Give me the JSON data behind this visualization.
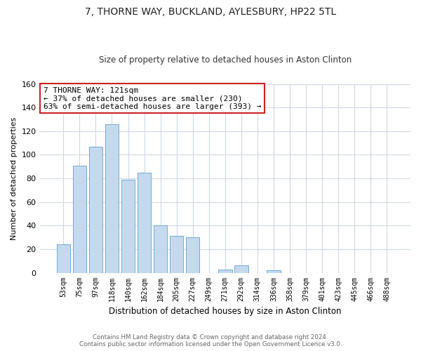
{
  "title": "7, THORNE WAY, BUCKLAND, AYLESBURY, HP22 5TL",
  "subtitle": "Size of property relative to detached houses in Aston Clinton",
  "xlabel": "Distribution of detached houses by size in Aston Clinton",
  "ylabel": "Number of detached properties",
  "bar_color": "#c5d9ee",
  "bar_edge_color": "#6baed6",
  "categories": [
    "53sqm",
    "75sqm",
    "97sqm",
    "118sqm",
    "140sqm",
    "162sqm",
    "184sqm",
    "205sqm",
    "227sqm",
    "249sqm",
    "271sqm",
    "292sqm",
    "314sqm",
    "336sqm",
    "358sqm",
    "379sqm",
    "401sqm",
    "423sqm",
    "445sqm",
    "466sqm",
    "488sqm"
  ],
  "values": [
    24,
    91,
    107,
    126,
    79,
    85,
    40,
    31,
    30,
    0,
    3,
    6,
    0,
    2,
    0,
    0,
    0,
    0,
    0,
    0,
    0
  ],
  "ylim": [
    0,
    160
  ],
  "yticks": [
    0,
    20,
    40,
    60,
    80,
    100,
    120,
    140,
    160
  ],
  "annotation_text_line1": "7 THORNE WAY: 121sqm",
  "annotation_text_line2": "← 37% of detached houses are smaller (230)",
  "annotation_text_line3": "63% of semi-detached houses are larger (393) →",
  "footnote_line1": "Contains HM Land Registry data © Crown copyright and database right 2024.",
  "footnote_line2": "Contains public sector information licensed under the Open Government Licence v3.0.",
  "background_color": "#ffffff",
  "grid_color": "#d0d8e8"
}
